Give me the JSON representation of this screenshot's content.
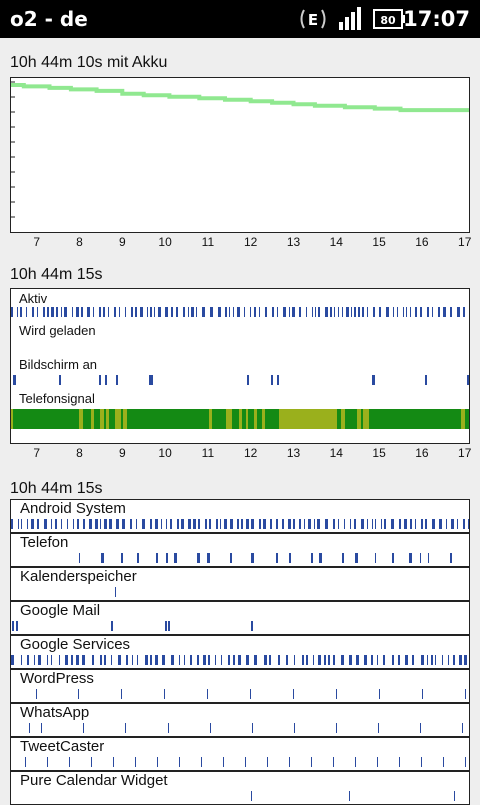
{
  "status_bar": {
    "carrier": "o2 - de",
    "network_type": "E",
    "battery_percent": "80",
    "time": "17:07",
    "icons": [
      "data-activity-icon",
      "edge-network-icon",
      "signal-bars-icon",
      "battery-icon"
    ]
  },
  "battery_section": {
    "title": "10h 44m 10s mit Akku",
    "line_color": "#90e890",
    "chart_data": {
      "type": "line",
      "x_range": [
        6.4,
        17.1
      ],
      "y_range": [
        0,
        100
      ],
      "x": [
        6.4,
        6.7,
        7.3,
        7.8,
        8.4,
        9.0,
        9.5,
        10.1,
        10.8,
        11.4,
        12.0,
        12.5,
        13.0,
        13.5,
        14.2,
        14.9,
        15.5,
        16.2,
        17.1
      ],
      "y": [
        98,
        97,
        96,
        95,
        94,
        92,
        91,
        90,
        89,
        88,
        87,
        86,
        85,
        84,
        83,
        82,
        81,
        81,
        81
      ]
    }
  },
  "axis_ticks": [
    "7",
    "8",
    "9",
    "10",
    "11",
    "12",
    "13",
    "14",
    "15",
    "16",
    "17"
  ],
  "activity_section": {
    "title": "10h 44m 15s",
    "rows": [
      {
        "label": "Aktiv",
        "pattern": "dense"
      },
      {
        "label": "Wird geladen",
        "pattern": "none"
      },
      {
        "label": "Bildschirm an",
        "pattern": "sparse"
      },
      {
        "label": "Telefonsignal",
        "pattern": "signal"
      }
    ],
    "colors": {
      "mark": "#2a4aa0",
      "signal_good": "#148a14",
      "signal_medium": "#9ab01c"
    }
  },
  "apps_section": {
    "title": "10h 44m 15s",
    "apps": [
      {
        "name": "Android System",
        "pattern": "dense"
      },
      {
        "name": "Telefon",
        "pattern": "medium"
      },
      {
        "name": "Kalenderspeicher",
        "pattern": "single"
      },
      {
        "name": "Google Mail",
        "pattern": "few"
      },
      {
        "name": "Google Services",
        "pattern": "dense2"
      },
      {
        "name": "WordPress",
        "pattern": "regular"
      },
      {
        "name": "WhatsApp",
        "pattern": "regular2"
      },
      {
        "name": "TweetCaster",
        "pattern": "regular3"
      },
      {
        "name": "Pure Calendar Widget",
        "pattern": "faint"
      }
    ]
  }
}
